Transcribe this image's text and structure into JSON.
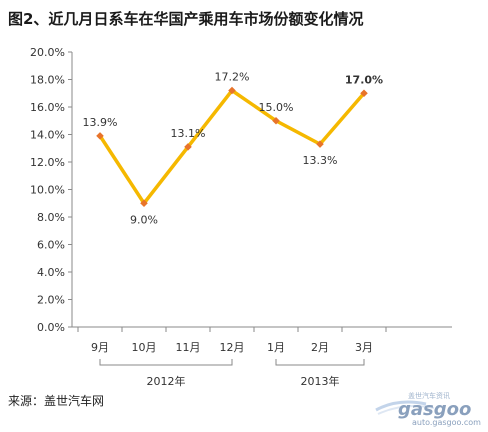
{
  "title": "图2、近几月日系车在华国产乘用车市场份额变化情况",
  "source": "来源：盖世汽车网",
  "watermark": {
    "top_text": "盖世汽车资讯",
    "brand": "gasgoo",
    "url": "auto.gasgoo.com"
  },
  "chart_data": {
    "type": "line",
    "categories": [
      "9月",
      "10月",
      "11月",
      "12月",
      "1月",
      "2月",
      "3月"
    ],
    "year_groups": [
      {
        "label": "2012年",
        "from": 0,
        "to": 3
      },
      {
        "label": "2013年",
        "from": 4,
        "to": 6
      }
    ],
    "series": [
      {
        "values": [
          13.9,
          9.0,
          13.1,
          17.2,
          15.0,
          13.3,
          17.0
        ],
        "labels": [
          "13.9%",
          "9.0%",
          "13.1%",
          "17.2%",
          "15.0%",
          "13.3%",
          "17.0%"
        ],
        "line_color": "#F5B800",
        "marker_color": "#E8742A",
        "bold_label_index": 6
      }
    ],
    "ylim": [
      0,
      20
    ],
    "yticks": [
      0,
      2,
      4,
      6,
      8,
      10,
      12,
      14,
      16,
      18,
      20
    ],
    "ytick_labels": [
      "0.0%",
      "2.0%",
      "4.0%",
      "6.0%",
      "8.0%",
      "10.0%",
      "12.0%",
      "14.0%",
      "16.0%",
      "18.0%",
      "20.0%"
    ],
    "grid": false,
    "legend": "none",
    "title": "",
    "xlabel": "",
    "ylabel": ""
  }
}
